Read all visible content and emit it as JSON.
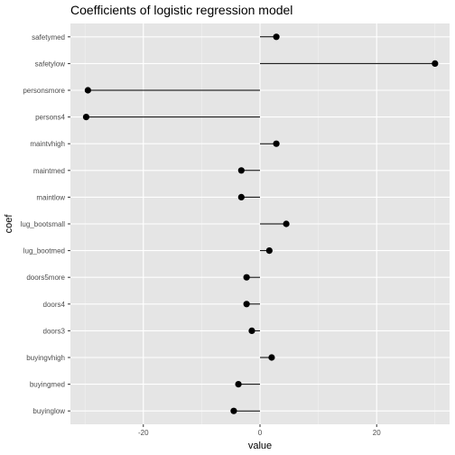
{
  "chart_data": {
    "type": "lollipop",
    "title": "Coefficients of logistic regression model",
    "xlabel": "value",
    "ylabel": "coef",
    "xlim": [
      -32.5,
      32.5
    ],
    "xticks": [
      -20,
      0,
      20
    ],
    "xtick_labels": [
      "-20",
      "0",
      "20"
    ],
    "grid": true,
    "categories": [
      "safetymed",
      "safetylow",
      "personsmore",
      "persons4",
      "maintvhigh",
      "maintmed",
      "maintlow",
      "lug_bootsmall",
      "lug_bootmed",
      "doors5more",
      "doors4",
      "doors3",
      "buyingvhigh",
      "buyingmed",
      "buyinglow"
    ],
    "values": [
      2.8,
      30.0,
      -29.5,
      -29.8,
      2.8,
      -3.2,
      -3.2,
      4.5,
      1.6,
      -2.3,
      -2.3,
      -1.4,
      2.0,
      -3.7,
      -4.5
    ],
    "colors": {
      "panel": "#e5e5e5",
      "grid_major": "#ffffff",
      "mark": "#000000"
    }
  }
}
